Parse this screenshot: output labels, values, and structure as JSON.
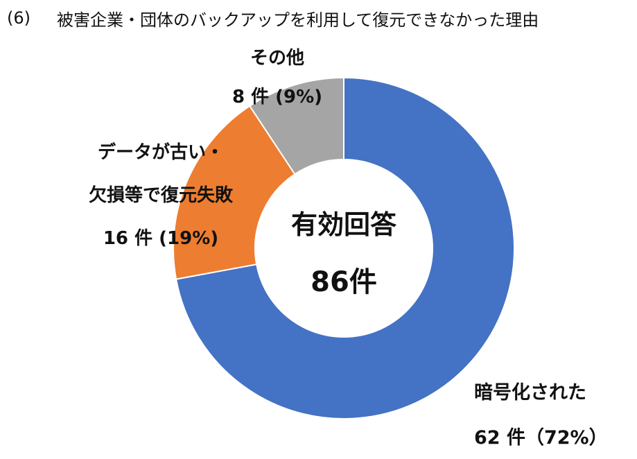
{
  "header": {
    "number": "(6)",
    "title": "被害企業・団体のバックアップを利用して復元できなかった理由"
  },
  "center": {
    "line1": "有効回答",
    "line2": "86件"
  },
  "chart_data": {
    "type": "pie",
    "variant": "donut",
    "title": "被害企業・団体のバックアップを利用して復元できなかった理由",
    "total_label": "有効回答 86件",
    "total": 86,
    "start_angle_deg": 0,
    "direction": "clockwise",
    "slices": [
      {
        "name": "暗号化された",
        "value": 62,
        "percent": 72,
        "color": "#4472C4",
        "label_lines": [
          "暗号化された",
          "62 件（72%）"
        ]
      },
      {
        "name": "データが古い・欠損等で復元失敗",
        "value": 16,
        "percent": 19,
        "color": "#ED7D31",
        "label_lines": [
          "データが古い・",
          "欠損等で復元失敗",
          "16 件 (19%)"
        ]
      },
      {
        "name": "その他",
        "value": 8,
        "percent": 9,
        "color": "#A5A5A5",
        "label_lines": [
          "その他",
          "8 件 (9%)"
        ]
      }
    ]
  }
}
